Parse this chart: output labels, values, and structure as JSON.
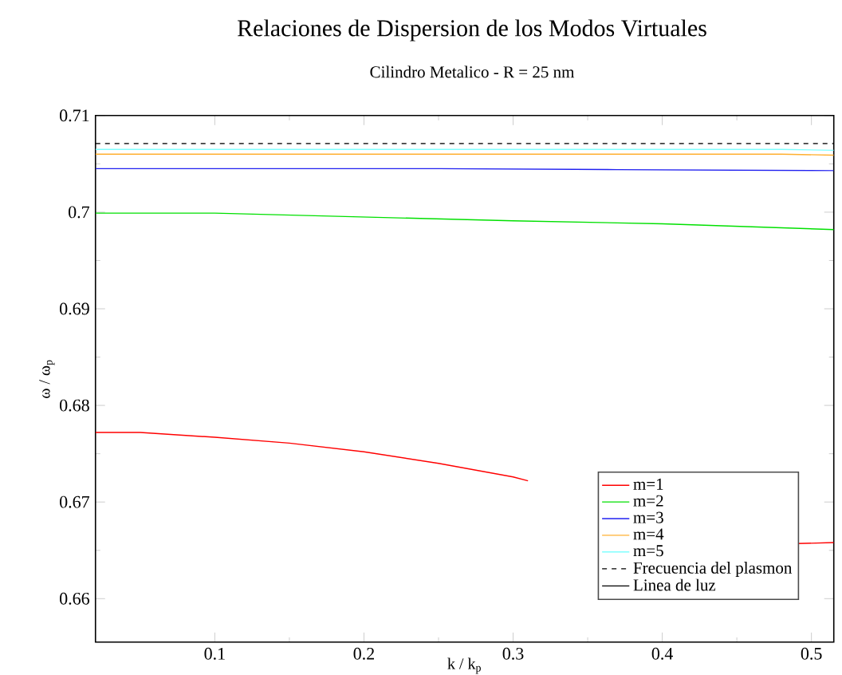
{
  "chart_data": {
    "type": "line",
    "title": "Relaciones de Dispersion de los Modos Virtuales",
    "subtitle": "Cilindro Metalico   -   R = 25 nm",
    "xlabel": "k / k$_{p}$",
    "ylabel": "ω / ω$_{p}$",
    "x": [
      0.02,
      0.05,
      0.1,
      0.15,
      0.2,
      0.25,
      0.3,
      0.31,
      0.35,
      0.4,
      0.45,
      0.49,
      0.515
    ],
    "series": [
      {
        "name": "m=1",
        "color": "#ff0000",
        "values": [
          0.6772,
          0.6772,
          0.6767,
          0.6761,
          0.6752,
          0.674,
          0.6726,
          0.6722,
          null,
          null,
          null,
          0.6657,
          0.6658
        ]
      },
      {
        "name": "m=2",
        "color": "#00e000",
        "x": [
          0.02,
          0.1,
          0.2,
          0.3,
          0.4,
          0.515
        ],
        "values": [
          0.6999,
          0.6999,
          0.6995,
          0.6991,
          0.6988,
          0.6982
        ]
      },
      {
        "name": "m=3",
        "color": "#2020f0",
        "x": [
          0.02,
          0.25,
          0.37,
          0.515
        ],
        "values": [
          0.7045,
          0.7045,
          0.7044,
          0.7043
        ]
      },
      {
        "name": "m=4",
        "color": "#ffb030",
        "x": [
          0.02,
          0.22,
          0.48,
          0.515
        ],
        "values": [
          0.706,
          0.706,
          0.706,
          0.7059
        ]
      },
      {
        "name": "m=5",
        "color": "#80ffff",
        "x": [
          0.02,
          0.48,
          0.515
        ],
        "values": [
          0.7065,
          0.7065,
          0.7064
        ]
      },
      {
        "name": "Frecuencia del plasmon",
        "color": "#000000",
        "line_style": "dashed",
        "x": [
          0.02,
          0.515
        ],
        "values": [
          0.7071,
          0.7071
        ]
      },
      {
        "name": "Linea de luz",
        "color": "#000000",
        "values": [
          null,
          null,
          null,
          null,
          null,
          null,
          null,
          null,
          null,
          null,
          null,
          null,
          null
        ]
      }
    ],
    "xlim": [
      0.02,
      0.515
    ],
    "ylim": [
      0.6555,
      0.71
    ],
    "xticks": [
      0.1,
      0.2,
      0.3,
      0.4,
      0.5
    ],
    "yticks": [
      0.66,
      0.67,
      0.68,
      0.69,
      0.7,
      0.71
    ],
    "grid": false,
    "legend": "bottom right",
    "marker": "none",
    "line_style": "solid"
  }
}
